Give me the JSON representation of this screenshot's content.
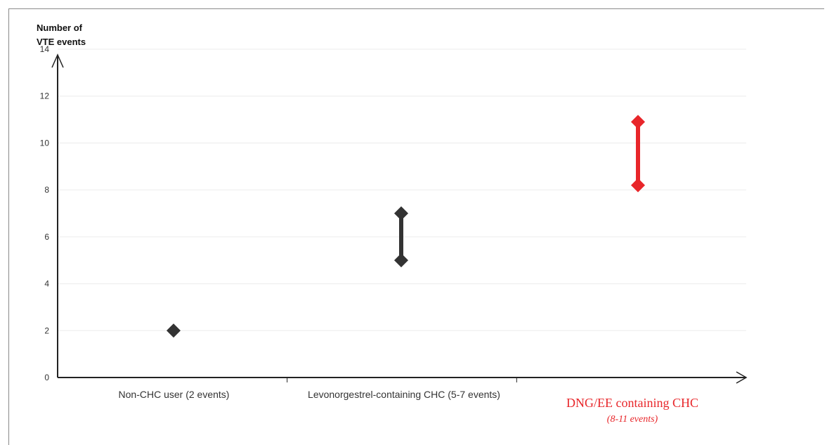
{
  "chart_data": {
    "type": "range",
    "ylabel_lines": [
      "Number of",
      "VTE events"
    ],
    "ylim": [
      0,
      14
    ],
    "yticks": [
      0,
      2,
      4,
      6,
      8,
      10,
      12,
      14
    ],
    "grid": true,
    "categories": [
      {
        "label": "Non-CHC user (2 events)",
        "low": 2,
        "high": 2,
        "color": "#333333"
      },
      {
        "label": "Levonorgestrel-containing CHC (5-7 events)",
        "low": 5,
        "high": 7,
        "color": "#333333"
      },
      {
        "label": "DNG/EE containing CHC",
        "sublabel": "(8-11 events)",
        "low": 8.2,
        "high": 10.9,
        "color": "#e8262a"
      }
    ]
  }
}
